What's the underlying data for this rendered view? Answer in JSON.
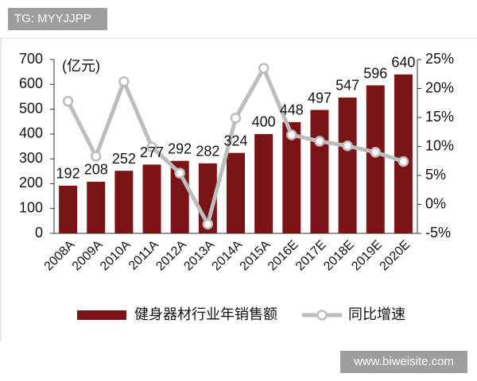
{
  "chart_data": {
    "type": "bar_line",
    "y_label": "(亿元)",
    "categories": [
      "2008A",
      "2009A",
      "2010A",
      "2011A",
      "2012A",
      "2013A",
      "2014A",
      "2015A",
      "2016E",
      "2017E",
      "2018E",
      "2019E",
      "2020E"
    ],
    "series": [
      {
        "name": "健身器材行业年销售额",
        "color": "#7b1416",
        "type": "bar",
        "values": [
          192,
          208,
          252,
          277,
          292,
          282,
          324,
          400,
          448,
          497,
          547,
          596,
          640
        ]
      },
      {
        "name": "同比增速",
        "color": "#bdbdbd",
        "type": "line",
        "axis": "y2",
        "values": [
          17.8,
          8.3,
          21.2,
          9.9,
          5.4,
          -3.4,
          14.9,
          23.5,
          12.0,
          10.9,
          10.1,
          9.0,
          7.4
        ]
      }
    ],
    "ylim": [
      0,
      700
    ],
    "yticks": [
      0,
      100,
      200,
      300,
      400,
      500,
      600,
      700
    ],
    "y2lim": [
      -5,
      25
    ],
    "y2ticks": [
      {
        "value": -5,
        "label": "-5%"
      },
      {
        "value": 0,
        "label": "0%"
      },
      {
        "value": 5,
        "label": "5%"
      },
      {
        "value": 10,
        "label": "10%"
      },
      {
        "value": 15,
        "label": "15%"
      },
      {
        "value": 20,
        "label": "20%"
      },
      {
        "value": 25,
        "label": "25%"
      }
    ],
    "grid": false,
    "legend": "bottom"
  },
  "watermarks": [
    "TG: MYYJJPP",
    "www.biweisite.com"
  ]
}
